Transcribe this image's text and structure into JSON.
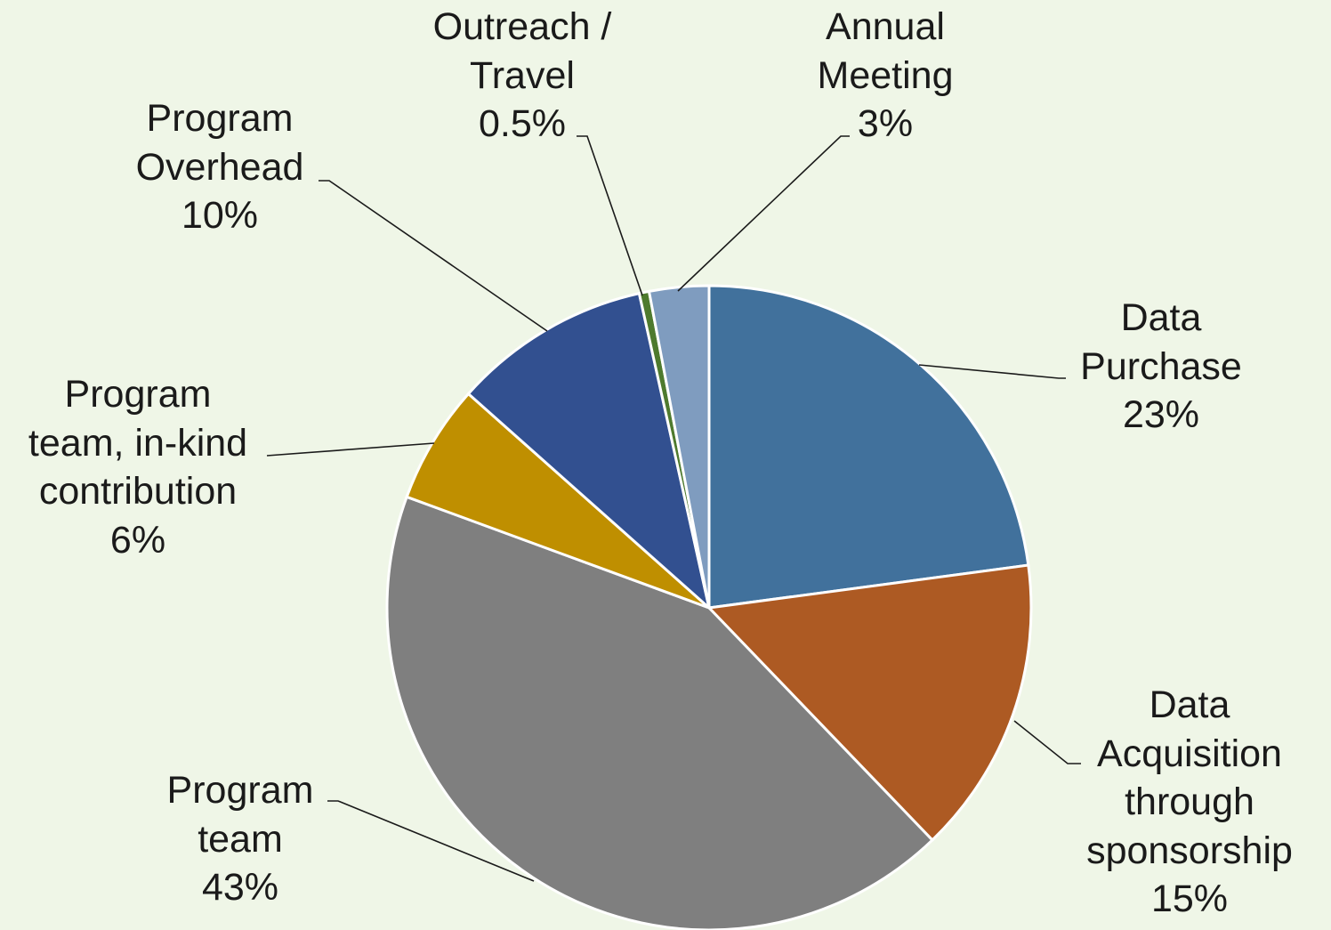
{
  "chart_data": {
    "type": "pie",
    "categories": [
      "Data\nPurchase",
      "Data\nAcquisition\nthrough\nsponsorship",
      "Program\nteam",
      "Program\nteam, in-kind\ncontribution",
      "Program\nOverhead",
      "Outreach /\nTravel",
      "Annual\nMeeting"
    ],
    "values": [
      23,
      15,
      43,
      6,
      10,
      0.5,
      3
    ],
    "value_labels": [
      "23%",
      "15%",
      "43%",
      "6%",
      "10%",
      "0.5%",
      "3%"
    ],
    "colors": [
      "#41719c",
      "#ad5a23",
      "#7f7f7f",
      "#bf8f00",
      "#325090",
      "#4e7a2e",
      "#7f9cbf"
    ]
  }
}
